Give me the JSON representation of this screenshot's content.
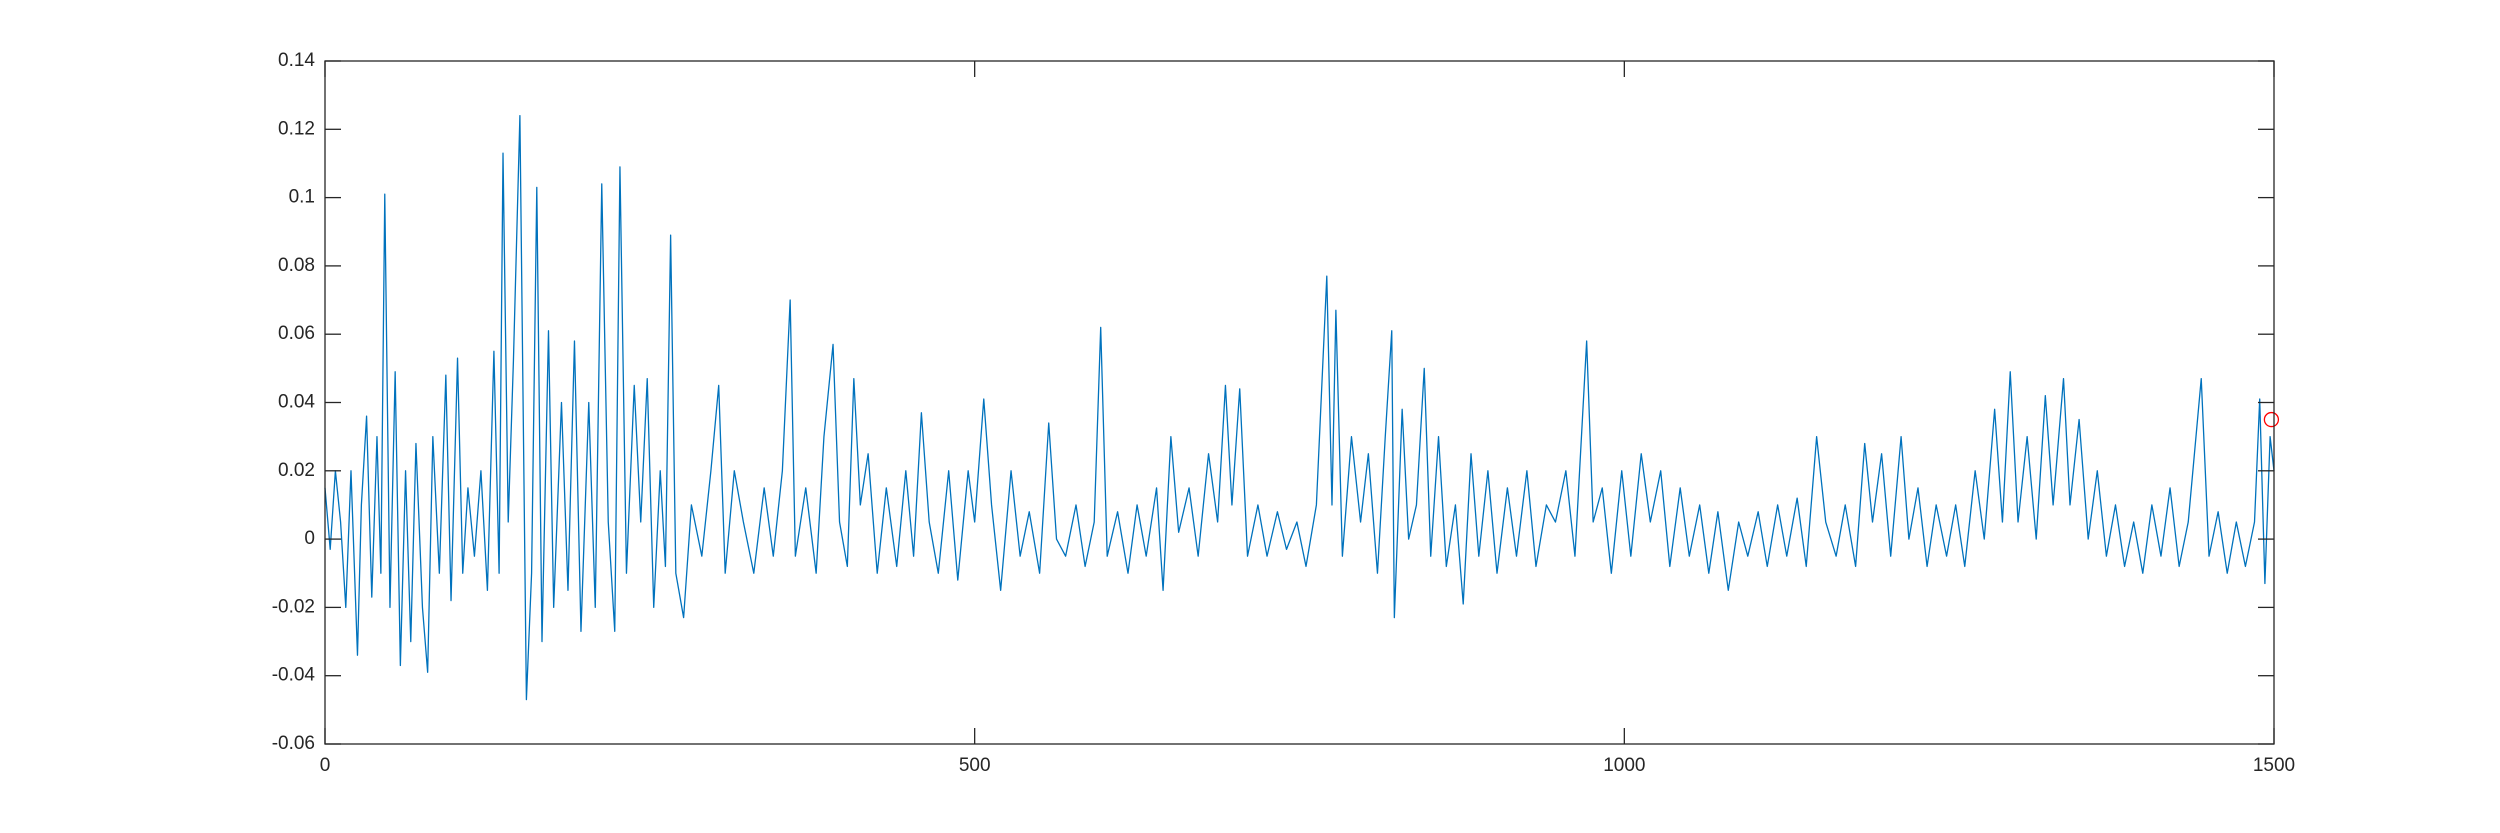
{
  "chart_data": {
    "type": "line",
    "x": [
      0,
      4,
      8,
      12,
      16,
      20,
      25,
      28,
      32,
      36,
      40,
      43,
      46,
      50,
      54,
      58,
      62,
      66,
      70,
      75,
      79,
      83,
      88,
      93,
      97,
      102,
      106,
      110,
      115,
      120,
      125,
      130,
      134,
      137,
      141,
      145,
      150,
      155,
      159,
      163,
      167,
      172,
      176,
      182,
      187,
      192,
      197,
      203,
      208,
      213,
      218,
      223,
      227,
      232,
      238,
      243,
      248,
      253,
      258,
      262,
      266,
      270,
      276,
      282,
      290,
      297,
      303,
      308,
      315,
      322,
      330,
      338,
      345,
      352,
      358,
      362,
      370,
      378,
      384,
      391,
      396,
      402,
      407,
      412,
      418,
      425,
      432,
      440,
      447,
      453,
      459,
      465,
      472,
      480,
      487,
      495,
      500,
      507,
      513,
      520,
      528,
      535,
      542,
      550,
      557,
      563,
      570,
      578,
      585,
      592,
      597,
      602,
      610,
      618,
      625,
      632,
      640,
      645,
      651,
      657,
      665,
      672,
      680,
      687,
      693,
      698,
      704,
      710,
      718,
      725,
      733,
      740,
      748,
      755,
      763,
      771,
      775,
      778,
      783,
      790,
      797,
      803,
      810,
      816,
      821,
      823,
      829,
      834,
      840,
      846,
      851,
      857,
      863,
      870,
      876,
      882,
      888,
      895,
      902,
      910,
      917,
      925,
      932,
      940,
      947,
      955,
      962,
      971,
      976,
      983,
      990,
      998,
      1005,
      1013,
      1020,
      1028,
      1035,
      1043,
      1050,
      1058,
      1065,
      1072,
      1080,
      1088,
      1095,
      1103,
      1110,
      1118,
      1125,
      1133,
      1140,
      1148,
      1155,
      1163,
      1170,
      1178,
      1185,
      1191,
      1198,
      1205,
      1213,
      1219,
      1226,
      1233,
      1240,
      1248,
      1255,
      1262,
      1270,
      1277,
      1285,
      1291,
      1297,
      1303,
      1310,
      1317,
      1324,
      1330,
      1338,
      1343,
      1350,
      1357,
      1364,
      1371,
      1378,
      1385,
      1392,
      1399,
      1406,
      1413,
      1420,
      1427,
      1434,
      1444,
      1450,
      1457,
      1464,
      1471,
      1478,
      1485,
      1489,
      1493,
      1497,
      1500
    ],
    "series": [
      {
        "color": "#0072bd",
        "values": [
          0.015,
          -0.003,
          0.02,
          0.005,
          -0.02,
          0.02,
          -0.034,
          0.01,
          0.036,
          -0.017,
          0.03,
          -0.01,
          0.101,
          -0.02,
          0.049,
          -0.037,
          0.02,
          -0.03,
          0.028,
          -0.02,
          -0.039,
          0.03,
          -0.01,
          0.048,
          -0.018,
          0.053,
          -0.01,
          0.015,
          -0.005,
          0.02,
          -0.015,
          0.055,
          -0.01,
          0.113,
          0.005,
          0.052,
          0.124,
          -0.047,
          -0.01,
          0.103,
          -0.03,
          0.061,
          -0.02,
          0.04,
          -0.015,
          0.058,
          -0.027,
          0.04,
          -0.02,
          0.104,
          0.005,
          -0.027,
          0.109,
          -0.01,
          0.045,
          0.005,
          0.047,
          -0.02,
          0.02,
          -0.008,
          0.089,
          -0.01,
          -0.023,
          0.01,
          -0.005,
          0.02,
          0.045,
          -0.01,
          0.02,
          0.005,
          -0.01,
          0.015,
          -0.005,
          0.02,
          0.07,
          -0.005,
          0.015,
          -0.01,
          0.03,
          0.057,
          0.005,
          -0.008,
          0.047,
          0.01,
          0.025,
          -0.01,
          0.015,
          -0.008,
          0.02,
          -0.005,
          0.037,
          0.005,
          -0.01,
          0.02,
          -0.012,
          0.02,
          0.005,
          0.041,
          0.01,
          -0.015,
          0.02,
          -0.005,
          0.008,
          -0.01,
          0.034,
          0.0,
          -0.005,
          0.01,
          -0.008,
          0.005,
          0.062,
          -0.005,
          0.008,
          -0.01,
          0.01,
          -0.005,
          0.015,
          -0.015,
          0.03,
          0.002,
          0.015,
          -0.005,
          0.025,
          0.005,
          0.045,
          0.01,
          0.044,
          -0.005,
          0.01,
          -0.005,
          0.008,
          -0.003,
          0.005,
          -0.008,
          0.01,
          0.077,
          0.01,
          0.067,
          -0.005,
          0.03,
          0.005,
          0.025,
          -0.01,
          0.03,
          0.061,
          -0.023,
          0.038,
          0.0,
          0.01,
          0.05,
          -0.005,
          0.03,
          -0.008,
          0.01,
          -0.019,
          0.025,
          -0.005,
          0.02,
          -0.01,
          0.015,
          -0.005,
          0.02,
          -0.008,
          0.01,
          0.005,
          0.02,
          -0.005,
          0.058,
          0.005,
          0.015,
          -0.01,
          0.02,
          -0.005,
          0.025,
          0.005,
          0.02,
          -0.008,
          0.015,
          -0.005,
          0.01,
          -0.01,
          0.008,
          -0.015,
          0.005,
          -0.005,
          0.008,
          -0.008,
          0.01,
          -0.005,
          0.012,
          -0.008,
          0.03,
          0.005,
          -0.005,
          0.01,
          -0.008,
          0.028,
          0.005,
          0.025,
          -0.005,
          0.03,
          0.0,
          0.015,
          -0.008,
          0.01,
          -0.005,
          0.01,
          -0.008,
          0.02,
          0.0,
          0.038,
          0.005,
          0.049,
          0.005,
          0.03,
          0.0,
          0.042,
          0.01,
          0.047,
          0.01,
          0.035,
          0.0,
          0.02,
          -0.005,
          0.01,
          -0.008,
          0.005,
          -0.01,
          0.01,
          -0.005,
          0.015,
          -0.008,
          0.005,
          0.047,
          -0.005,
          0.008,
          -0.01,
          0.005,
          -0.008,
          0.005,
          0.041,
          -0.013,
          0.03,
          0.02
        ]
      }
    ],
    "highlight": {
      "x": 1498,
      "y": 0.035,
      "color": "#ff0000"
    },
    "xlim": [
      0,
      1500
    ],
    "xticks": [
      0,
      500,
      1000,
      1500
    ],
    "ylim": [
      -0.06,
      0.14
    ],
    "yticks": [
      -0.06,
      -0.04,
      -0.02,
      0,
      0.02,
      0.04,
      0.06,
      0.08,
      0.1,
      0.12,
      0.14
    ]
  }
}
